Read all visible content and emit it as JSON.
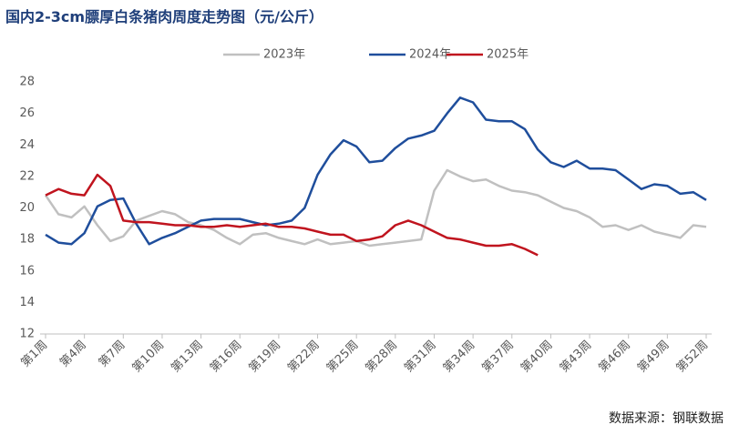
{
  "chart_data": {
    "type": "line",
    "title": "国内2-3cm膘厚白条猪肉周度走势图（元/公斤）",
    "source": "数据来源：钢联数据",
    "categories": [
      "第1周",
      null,
      null,
      "第4周",
      null,
      null,
      "第7周",
      null,
      null,
      "第10周",
      null,
      null,
      "第13周",
      null,
      null,
      "第16周",
      null,
      null,
      "第19周",
      null,
      null,
      "第22周",
      null,
      null,
      "第25周",
      null,
      null,
      "第28周",
      null,
      null,
      "第31周",
      null,
      null,
      "第34周",
      null,
      null,
      "第37周",
      null,
      null,
      "第40周",
      null,
      null,
      "第43周",
      null,
      null,
      "第46周",
      null,
      null,
      "第49周",
      null,
      null,
      "第52周"
    ],
    "series": [
      {
        "name": "2023年",
        "color": "#c0c0c0",
        "values": [
          20.8,
          19.6,
          19.4,
          20.1,
          18.9,
          17.9,
          18.2,
          19.2,
          19.5,
          19.8,
          19.6,
          19.1,
          18.9,
          18.6,
          18.1,
          17.7,
          18.3,
          18.4,
          18.1,
          17.9,
          17.7,
          18.0,
          17.7,
          17.8,
          17.9,
          17.6,
          17.7,
          17.8,
          17.9,
          18.0,
          21.1,
          22.4,
          22.0,
          21.7,
          21.8,
          21.4,
          21.1,
          21.0,
          20.8,
          20.4,
          20.0,
          19.8,
          19.4,
          18.8,
          18.9,
          18.6,
          18.9,
          18.5,
          18.3,
          18.1,
          18.9,
          18.8
        ]
      },
      {
        "name": "2024年",
        "color": "#1f4e9c",
        "values": [
          18.3,
          17.8,
          17.7,
          18.4,
          20.1,
          20.5,
          20.6,
          19.0,
          17.7,
          18.1,
          18.4,
          18.8,
          19.2,
          19.3,
          19.3,
          19.3,
          19.1,
          18.9,
          19.0,
          19.2,
          20.0,
          22.1,
          23.4,
          24.3,
          23.9,
          22.9,
          23.0,
          23.8,
          24.4,
          24.6,
          24.9,
          26.0,
          27.0,
          26.7,
          25.6,
          25.5,
          25.5,
          25.0,
          23.7,
          22.9,
          22.6,
          23.0,
          22.5,
          22.5,
          22.4,
          21.8,
          21.2,
          21.5,
          21.4,
          20.9,
          21.0,
          20.5
        ]
      },
      {
        "name": "2025年",
        "color": "#c0141e",
        "values": [
          20.8,
          21.2,
          20.9,
          20.8,
          22.1,
          21.4,
          19.2,
          19.1,
          19.1,
          19.0,
          18.9,
          18.9,
          18.8,
          18.8,
          18.9,
          18.8,
          18.9,
          19.0,
          18.8,
          18.8,
          18.7,
          18.5,
          18.3,
          18.3,
          17.9,
          18.0,
          18.2,
          18.9,
          19.2,
          18.9,
          18.5,
          18.1,
          18.0,
          17.8,
          17.6,
          17.6,
          17.7,
          17.4,
          17.0,
          null,
          null,
          null,
          null,
          null,
          null,
          null,
          null,
          null,
          null,
          null,
          null,
          null
        ]
      }
    ],
    "ylim": [
      12,
      28
    ],
    "yticks": [
      12,
      14,
      16,
      18,
      20,
      22,
      24,
      26,
      28
    ]
  }
}
